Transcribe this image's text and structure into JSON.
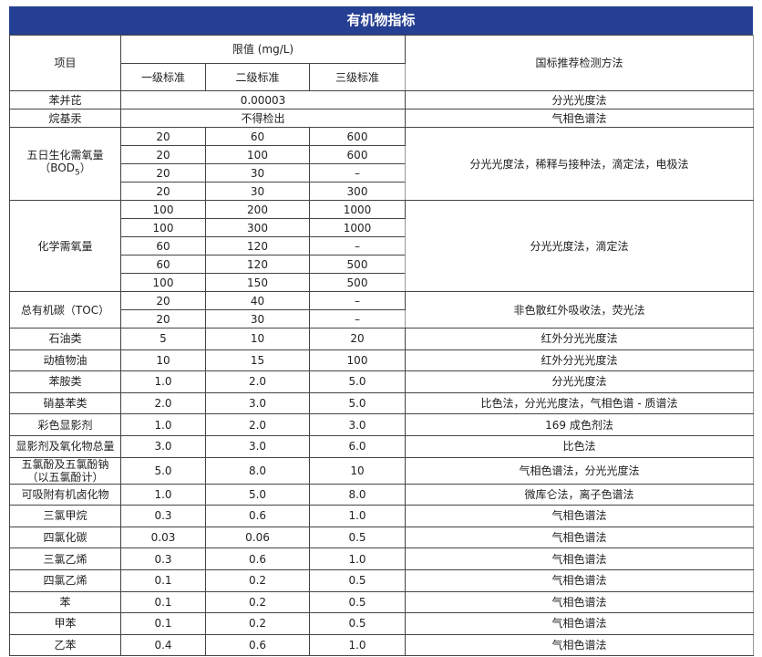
{
  "title": "有机物指标",
  "header": {
    "item": "项目",
    "limit": "限值 (mg/L)",
    "grades": [
      "一级标准",
      "二级标准",
      "三级标准"
    ],
    "method": "国标推荐检测方法"
  },
  "groups": [
    {
      "item": "苯并芘",
      "merged": "0.00003",
      "method": "分光光度法",
      "h": 20
    },
    {
      "item": "烷基汞",
      "merged": "不得检出",
      "method": "气相色谱法",
      "h": 20
    },
    {
      "item": "五日生化需氧量",
      "item2": "（BOD",
      "sub": "5",
      "item3": "）",
      "rows": [
        [
          "20",
          "60",
          "600"
        ],
        [
          "20",
          "100",
          "600"
        ],
        [
          "20",
          "30",
          "–"
        ],
        [
          "20",
          "30",
          "300"
        ]
      ],
      "method": "分光光度法，稀释与接种法，滴定法，电极法",
      "h": 20
    },
    {
      "item": "化学需氧量",
      "rows": [
        [
          "100",
          "200",
          "1000"
        ],
        [
          "100",
          "300",
          "1000"
        ],
        [
          "60",
          "120",
          "–"
        ],
        [
          "60",
          "120",
          "500"
        ],
        [
          "100",
          "150",
          "500"
        ]
      ],
      "method": "分光光度法，滴定法",
      "h": 20
    },
    {
      "item": "总有机碳（TOC）",
      "rows": [
        [
          "20",
          "40",
          "–"
        ],
        [
          "20",
          "30",
          "–"
        ]
      ],
      "method": "非色散红外吸收法，荧光法",
      "h": 20
    },
    {
      "item": "石油类",
      "rows": [
        [
          "5",
          "10",
          "20"
        ]
      ],
      "method": "红外分光光度法",
      "h": 24
    },
    {
      "item": "动植物油",
      "rows": [
        [
          "10",
          "15",
          "100"
        ]
      ],
      "method": "红外分光光度法",
      "h": 24
    },
    {
      "item": "苯胺类",
      "rows": [
        [
          "1.0",
          "2.0",
          "5.0"
        ]
      ],
      "method": "分光光度法",
      "h": 24
    },
    {
      "item": "硝基苯类",
      "rows": [
        [
          "2.0",
          "3.0",
          "5.0"
        ]
      ],
      "method": "比色法，分光光度法，气相色谱 - 质谱法",
      "h": 24
    },
    {
      "item": "彩色显影剂",
      "rows": [
        [
          "1.0",
          "2.0",
          "3.0"
        ]
      ],
      "method": "169 成色剂法",
      "h": 24
    },
    {
      "item": "显影剂及氧化物总量",
      "rows": [
        [
          "3.0",
          "3.0",
          "6.0"
        ]
      ],
      "method": "比色法",
      "h": 24
    },
    {
      "item": "五氯酚及五氯酚钠",
      "item2": "（以五氯酚计）",
      "rows": [
        [
          "5.0",
          "8.0",
          "10"
        ]
      ],
      "method": "气相色谱法，分光光度法",
      "h": 29
    },
    {
      "item": "可吸附有机卤化物",
      "rows": [
        [
          "1.0",
          "5.0",
          "8.0"
        ]
      ],
      "method": "微库仑法，离子色谱法",
      "h": 24
    },
    {
      "item": "三氯甲烷",
      "rows": [
        [
          "0.3",
          "0.6",
          "1.0"
        ]
      ],
      "method": "气相色谱法",
      "h": 24
    },
    {
      "item": "四氯化碳",
      "rows": [
        [
          "0.03",
          "0.06",
          "0.5"
        ]
      ],
      "method": "气相色谱法",
      "h": 24
    },
    {
      "item": "三氯乙烯",
      "rows": [
        [
          "0.3",
          "0.6",
          "1.0"
        ]
      ],
      "method": "气相色谱法",
      "h": 24
    },
    {
      "item": "四氯乙烯",
      "rows": [
        [
          "0.1",
          "0.2",
          "0.5"
        ]
      ],
      "method": "气相色谱法",
      "h": 24
    },
    {
      "item": "苯",
      "rows": [
        [
          "0.1",
          "0.2",
          "0.5"
        ]
      ],
      "method": "气相色谱法",
      "h": 24
    },
    {
      "item": "甲苯",
      "rows": [
        [
          "0.1",
          "0.2",
          "0.5"
        ]
      ],
      "method": "气相色谱法",
      "h": 24
    },
    {
      "item": "乙苯",
      "rows": [
        [
          "0.4",
          "0.6",
          "1.0"
        ]
      ],
      "method": "气相色谱法",
      "h": 24
    }
  ],
  "colors": {
    "title_bar": "#253f92",
    "border": "#444444"
  }
}
